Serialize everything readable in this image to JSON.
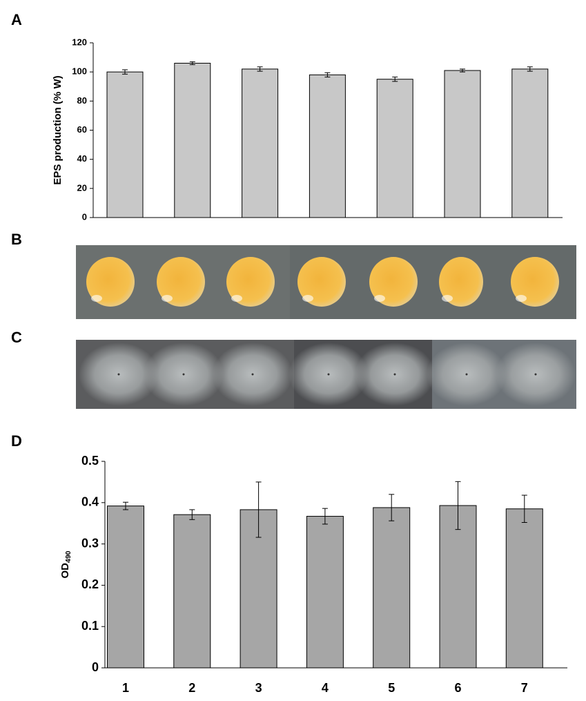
{
  "chart_data": [
    {
      "type": "bar",
      "panel_label": "A",
      "y_label": "EPS production (% W)",
      "categories": [
        null,
        null,
        null,
        null,
        null,
        null,
        null
      ],
      "values": [
        100,
        106,
        102,
        98,
        95,
        101,
        102
      ],
      "errors": [
        1.5,
        1,
        1.5,
        1.5,
        1.5,
        1,
        1.5
      ],
      "color": "#c8c8c8",
      "ylim": [
        0,
        120
      ],
      "yticks": [
        0,
        20,
        40,
        60,
        80,
        100,
        120
      ]
    },
    {
      "type": "bar",
      "panel_label": "D",
      "y_label": "OD",
      "y_label_subscript": "490",
      "categories": [
        "1",
        "2",
        "3",
        "4",
        "5",
        "6",
        "7"
      ],
      "values": [
        0.392,
        0.371,
        0.383,
        0.367,
        0.388,
        0.393,
        0.385
      ],
      "errors": [
        0.009,
        0.012,
        0.067,
        0.019,
        0.032,
        0.058,
        0.033
      ],
      "color": "#a6a6a6",
      "ylim": [
        0,
        0.5
      ],
      "yticks": [
        0,
        0.1,
        0.2,
        0.3,
        0.4,
        0.5
      ]
    }
  ],
  "photos": [
    {
      "label": "B"
    },
    {
      "label": "C"
    }
  ]
}
